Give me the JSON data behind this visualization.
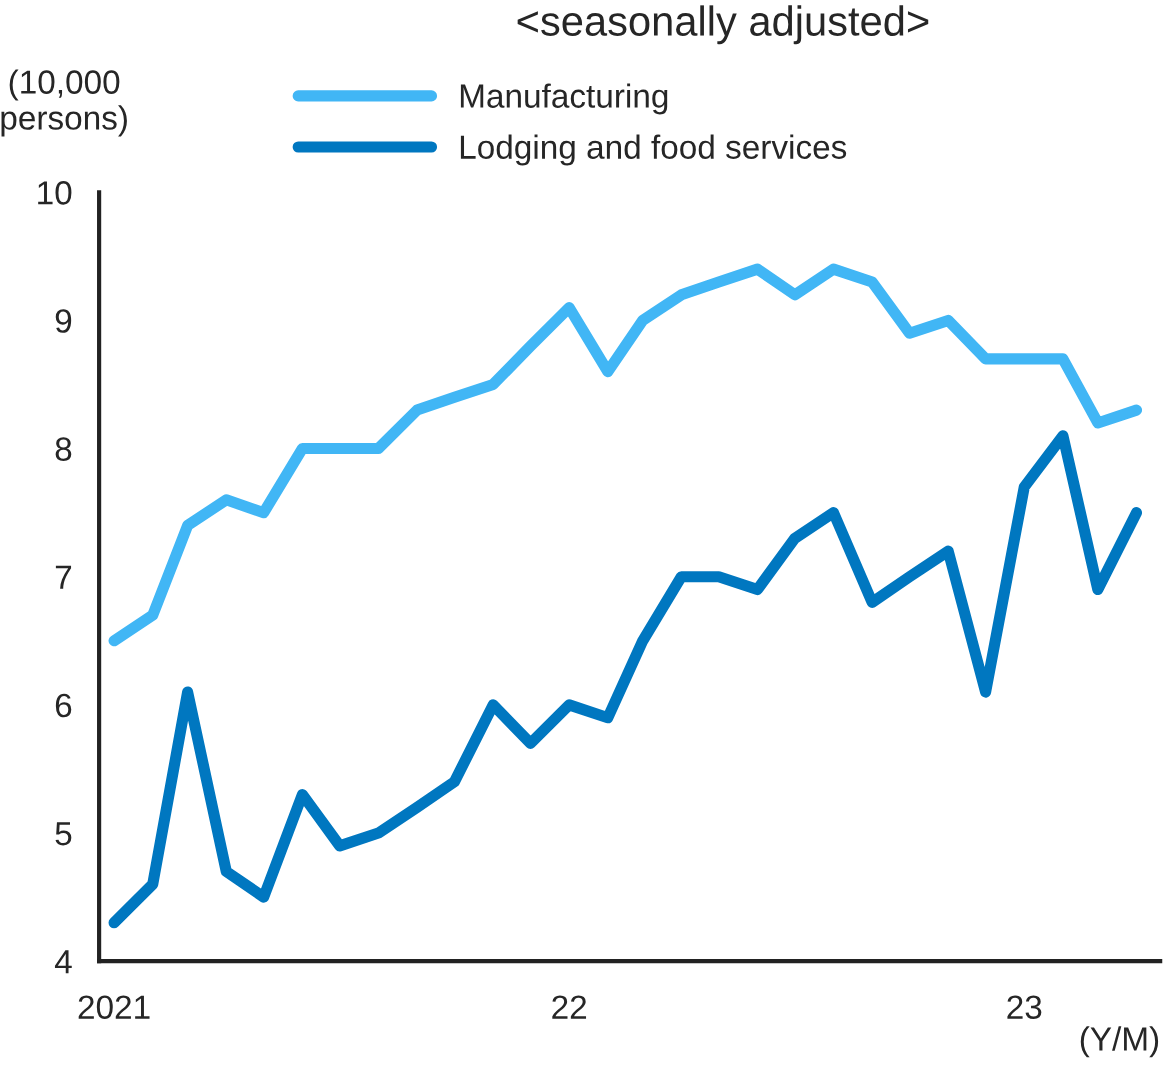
{
  "chart_data": {
    "type": "line",
    "title": "<seasonally adjusted>",
    "ylabel": "(10,000\npersons)",
    "xlabel": "(Y/M)",
    "x": [
      "2021-01",
      "2021-02",
      "2021-03",
      "2021-04",
      "2021-05",
      "2021-06",
      "2021-07",
      "2021-08",
      "2021-09",
      "2021-10",
      "2021-11",
      "2021-12",
      "2022-01",
      "2022-02",
      "2022-03",
      "2022-04",
      "2022-05",
      "2022-06",
      "2022-07",
      "2022-08",
      "2022-09",
      "2022-10",
      "2022-11",
      "2022-12",
      "2023-01",
      "2023-02",
      "2023-03",
      "2023-04"
    ],
    "series": [
      {
        "name": "Manufacturing",
        "color": "#41b6f5",
        "values": [
          6.5,
          6.7,
          7.4,
          7.6,
          7.5,
          8.0,
          8.0,
          8.0,
          8.3,
          8.4,
          8.5,
          8.8,
          9.1,
          8.6,
          9.0,
          9.2,
          9.3,
          9.4,
          9.2,
          9.4,
          9.3,
          8.9,
          9.0,
          8.7,
          8.7,
          8.7,
          8.2,
          8.3
        ]
      },
      {
        "name": "Lodging and food services",
        "color": "#0077c0",
        "values": [
          4.3,
          4.6,
          6.1,
          4.7,
          4.5,
          5.3,
          4.9,
          5.0,
          5.2,
          5.4,
          6.0,
          5.7,
          6.0,
          5.9,
          6.5,
          7.0,
          7.0,
          6.9,
          7.3,
          7.5,
          6.8,
          7.0,
          7.2,
          6.1,
          7.7,
          8.1,
          6.9,
          7.5
        ]
      }
    ],
    "xlim": [
      "2020-12-20",
      "2023-04-20"
    ],
    "xticks": [
      {
        "value": "2021-01",
        "label": "2021"
      },
      {
        "value": "2022-01",
        "label": "22"
      },
      {
        "value": "2023-01",
        "label": "23"
      }
    ],
    "ylim": [
      4,
      10
    ],
    "yticks": [
      4,
      5,
      6,
      7,
      8,
      9,
      10
    ],
    "grid": false,
    "legend": "top left",
    "marker": "none",
    "line_style": "solid"
  }
}
